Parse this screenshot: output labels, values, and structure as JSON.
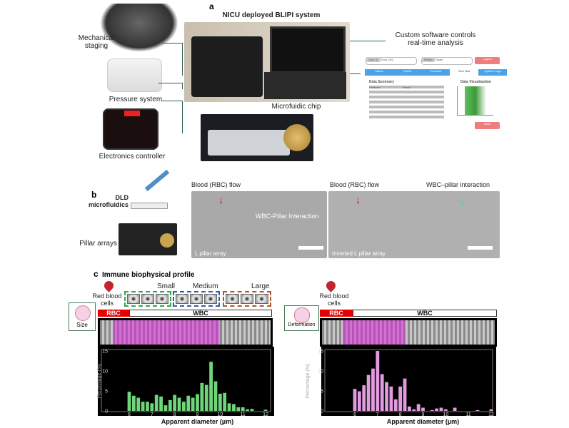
{
  "panel_a": {
    "label": "a",
    "title": "NICU deployed BLIPI system",
    "components": [
      "Mechanical staging",
      "Pressure system",
      "Electronics controller"
    ],
    "chip_label": "Microfuidic chip",
    "software_label": "Custom software controls real-time analysis",
    "software": {
      "user_id_label": "User ID",
      "user_id_value": "Tech_001",
      "preset_label": "Preset",
      "preset_value": "Tester",
      "logout": "Logout",
      "tabs": [
        "Status",
        "Optics",
        "Pressure",
        "Run Test",
        "System Logs"
      ],
      "active_tab": "Run Test",
      "summary_title": "Data Summary",
      "summary_headers": [
        "Features",
        "Result"
      ],
      "viz_title": "Data Visualisation",
      "back": "Back"
    }
  },
  "panel_b": {
    "label": "b",
    "dld_label": "DLD microfluidics",
    "pillar_label": "Pillar arrays",
    "img1": {
      "flow": "Blood (RBC) flow",
      "interaction": "WBC-Pillar Interaction",
      "array": "L pillar array"
    },
    "img2": {
      "flow": "Blood (RBC) flow",
      "interaction": "WBC–pillar interaction",
      "array": "Inverted L pillar array"
    }
  },
  "panel_c": {
    "label": "c",
    "title": "Immune biophysical profile",
    "rbc_cells": "Red blood cells",
    "sizes": [
      "Small",
      "Medium",
      "Large"
    ],
    "rbc": "RBC",
    "wbc": "WBC",
    "size_label": "Size",
    "deformation_label": "Deformation"
  },
  "colors": {
    "size_hist": "#6fd67a",
    "deform_hist": "#e39be0",
    "rbc_bar": "#e60000",
    "small": "#2fa84f",
    "medium": "#2e5fa8",
    "large": "#b0572a"
  },
  "chart_data": [
    {
      "type": "bar",
      "xlabel": "Apparent diameter (µm)",
      "ylabel": "Percentage (%)",
      "xlim": [
        6,
        12
      ],
      "ylim": [
        0,
        15
      ],
      "xticks": [
        6,
        7,
        8,
        9,
        10,
        11,
        12
      ],
      "yticks": [
        0,
        5,
        10,
        15
      ],
      "x": [
        6.0,
        6.2,
        6.4,
        6.6,
        6.8,
        7.0,
        7.2,
        7.4,
        7.6,
        7.8,
        8.0,
        8.2,
        8.4,
        8.6,
        8.8,
        9.0,
        9.2,
        9.4,
        9.6,
        9.8,
        10.0,
        10.2,
        10.4,
        10.6,
        10.8,
        11.0,
        11.2,
        11.4,
        12.0
      ],
      "values": [
        4.8,
        3.8,
        3.3,
        2.3,
        2.3,
        1.9,
        4.0,
        3.6,
        1.4,
        2.7,
        4.0,
        3.3,
        2.3,
        3.8,
        3.3,
        4.2,
        7.0,
        6.5,
        12.3,
        7.4,
        4.3,
        4.5,
        1.9,
        1.7,
        0.9,
        0.9,
        0.4,
        0.5,
        0.3
      ]
    },
    {
      "type": "bar",
      "xlabel": "Apparent diameter (µm)",
      "ylabel": "Percentage (%)",
      "xlim": [
        6,
        12
      ],
      "ylim": [
        0,
        15
      ],
      "xticks": [
        6,
        7,
        8,
        9,
        10,
        11,
        12
      ],
      "yticks": [
        0,
        5,
        10,
        15
      ],
      "x": [
        6.0,
        6.2,
        6.4,
        6.6,
        6.8,
        7.0,
        7.2,
        7.4,
        7.6,
        7.8,
        8.0,
        8.2,
        8.4,
        8.6,
        8.8,
        9.0,
        9.4,
        9.6,
        9.8,
        10.0,
        10.4,
        11.4,
        12.0
      ],
      "values": [
        5.5,
        4.9,
        6.4,
        9.0,
        10.6,
        15.0,
        9.2,
        7.2,
        6.1,
        2.9,
        6.1,
        8.1,
        1.1,
        0.4,
        1.7,
        0.8,
        0.2,
        0.6,
        0.8,
        0.4,
        0.8,
        0.2,
        0.4
      ]
    }
  ]
}
